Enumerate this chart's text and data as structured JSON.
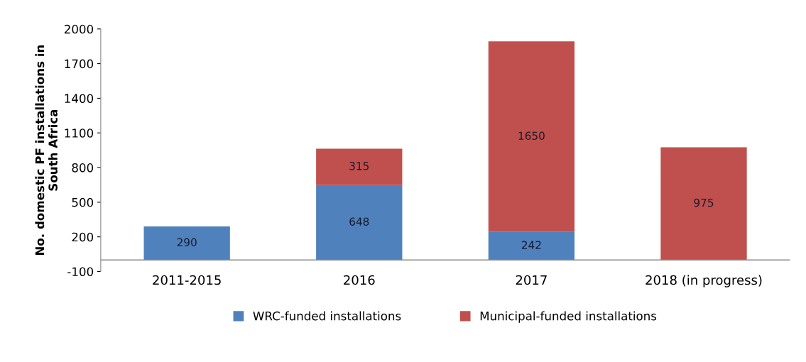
{
  "chart_data": {
    "type": "bar",
    "stacked": true,
    "ylabel": "No. domestic PF installations in\nSouth Africa",
    "categories": [
      "2011-2015",
      "2016",
      "2017",
      "2018 (in progress)"
    ],
    "series": [
      {
        "name": "WRC-funded installations",
        "color": "#4f81bd",
        "values": [
          290,
          648,
          242,
          null
        ]
      },
      {
        "name": "Municipal-funded installations",
        "color": "#c0504d",
        "values": [
          null,
          315,
          1650,
          975
        ]
      }
    ],
    "ylim": [
      -100,
      2000
    ],
    "yticks": [
      -100,
      200,
      500,
      800,
      1100,
      1400,
      1700,
      2000
    ],
    "data_labels": true,
    "grid": false,
    "legend": "bottom"
  }
}
